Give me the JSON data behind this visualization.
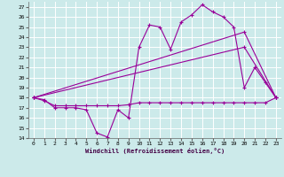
{
  "bg_color": "#cceaea",
  "grid_color": "#ffffff",
  "line_color": "#990099",
  "xlabel": "Windchill (Refroidissement éolien,°C)",
  "xlim": [
    -0.5,
    23.5
  ],
  "ylim": [
    14,
    27.5
  ],
  "yticks": [
    14,
    15,
    16,
    17,
    18,
    19,
    20,
    21,
    22,
    23,
    24,
    25,
    26,
    27
  ],
  "xticks": [
    0,
    1,
    2,
    3,
    4,
    5,
    6,
    7,
    8,
    9,
    10,
    11,
    12,
    13,
    14,
    15,
    16,
    17,
    18,
    19,
    20,
    21,
    22,
    23
  ],
  "series": [
    {
      "x": [
        0,
        1,
        2,
        3,
        4,
        5,
        6,
        7,
        8,
        9,
        10,
        11,
        12,
        13,
        14,
        15,
        16,
        17,
        18,
        19,
        20,
        21,
        22,
        23
      ],
      "y": [
        18,
        17.8,
        17,
        17,
        17,
        16.8,
        14.5,
        14.1,
        16.8,
        16,
        23,
        25.2,
        25,
        22.8,
        25.5,
        26.2,
        27.2,
        26.5,
        26,
        25,
        19,
        21,
        19.5,
        18
      ],
      "markers": true
    },
    {
      "x": [
        0,
        1,
        2,
        3,
        4,
        5,
        6,
        7,
        8,
        9,
        10,
        11,
        12,
        13,
        14,
        15,
        16,
        17,
        18,
        19,
        20,
        21,
        22,
        23
      ],
      "y": [
        18,
        17.7,
        17.2,
        17.2,
        17.2,
        17.2,
        17.2,
        17.2,
        17.2,
        17.3,
        17.5,
        17.5,
        17.5,
        17.5,
        17.5,
        17.5,
        17.5,
        17.5,
        17.5,
        17.5,
        17.5,
        17.5,
        17.5,
        18
      ],
      "markers": true
    },
    {
      "x": [
        0,
        20,
        23
      ],
      "y": [
        18,
        23,
        18
      ],
      "markers": true
    },
    {
      "x": [
        0,
        20,
        23
      ],
      "y": [
        18,
        24.5,
        18
      ],
      "markers": true
    }
  ]
}
